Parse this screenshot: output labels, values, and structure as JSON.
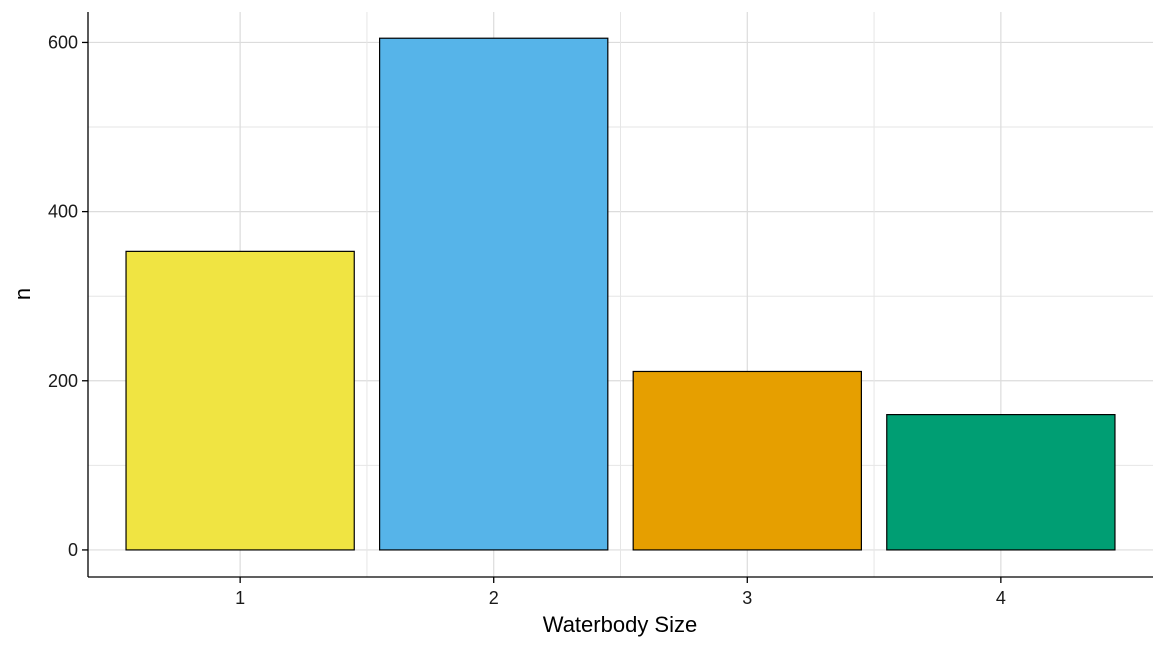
{
  "chart_data": {
    "type": "bar",
    "title": "",
    "xlabel": "Waterbody Size",
    "ylabel": "n",
    "categories": [
      "1",
      "2",
      "3",
      "4"
    ],
    "values": [
      353,
      605,
      211,
      160
    ],
    "colors": [
      "#F0E442",
      "#56B4E9",
      "#E69F00",
      "#009E73"
    ],
    "ylim": [
      -32,
      636
    ],
    "yticks": [
      0,
      200,
      400,
      600
    ],
    "ytick_labels": [
      "0",
      "200",
      "400",
      "600"
    ],
    "grid": true,
    "legend": "none"
  }
}
